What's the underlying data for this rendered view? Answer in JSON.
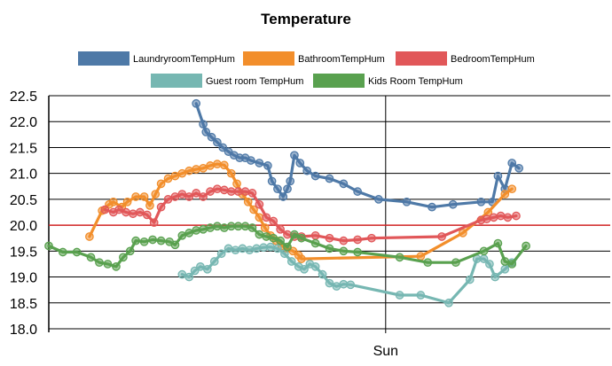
{
  "chart_data": {
    "type": "line",
    "title": "Temperature",
    "xlabel": "",
    "ylabel": "",
    "x_range_hours": [
      0,
      40
    ],
    "ylim": [
      18.0,
      22.5
    ],
    "yticks": [
      18.0,
      18.5,
      19.0,
      19.5,
      20.0,
      20.5,
      21.0,
      21.5,
      22.0,
      22.5
    ],
    "ytick_labels": [
      "18.0",
      "18.5",
      "19.0",
      "19.5",
      "20.0",
      "20.5",
      "21.0",
      "21.5",
      "22.0",
      "22.5"
    ],
    "xticks": [
      {
        "x": 24,
        "label": "Sun"
      }
    ],
    "reference_line": {
      "y": 20.0,
      "color": "#d62728"
    },
    "series": [
      {
        "name": "LaundryroomTempHum",
        "color": "#4e79a7",
        "points": [
          [
            10.5,
            22.35
          ],
          [
            11.0,
            21.95
          ],
          [
            11.2,
            21.8
          ],
          [
            11.6,
            21.7
          ],
          [
            12.0,
            21.6
          ],
          [
            12.4,
            21.5
          ],
          [
            12.8,
            21.42
          ],
          [
            13.2,
            21.35
          ],
          [
            13.6,
            21.3
          ],
          [
            14.0,
            21.3
          ],
          [
            14.4,
            21.25
          ],
          [
            15.0,
            21.2
          ],
          [
            15.6,
            21.15
          ],
          [
            15.9,
            20.85
          ],
          [
            16.3,
            20.7
          ],
          [
            16.7,
            20.55
          ],
          [
            17.0,
            20.7
          ],
          [
            17.2,
            20.85
          ],
          [
            17.5,
            21.35
          ],
          [
            17.9,
            21.2
          ],
          [
            18.4,
            21.05
          ],
          [
            19.0,
            20.95
          ],
          [
            20.0,
            20.9
          ],
          [
            21.0,
            20.8
          ],
          [
            22.0,
            20.65
          ],
          [
            23.5,
            20.5
          ],
          [
            25.5,
            20.45
          ],
          [
            27.3,
            20.35
          ],
          [
            28.8,
            20.4
          ],
          [
            30.8,
            20.45
          ],
          [
            31.6,
            20.45
          ],
          [
            32.0,
            20.95
          ],
          [
            32.5,
            20.7
          ],
          [
            33.0,
            21.2
          ],
          [
            33.5,
            21.1
          ]
        ]
      },
      {
        "name": "BathroomTempHum",
        "color": "#f28e2b",
        "points": [
          [
            2.9,
            19.78
          ],
          [
            3.8,
            20.28
          ],
          [
            4.3,
            20.4
          ],
          [
            4.6,
            20.45
          ],
          [
            5.2,
            20.35
          ],
          [
            5.6,
            20.45
          ],
          [
            6.2,
            20.55
          ],
          [
            6.8,
            20.55
          ],
          [
            7.2,
            20.38
          ],
          [
            7.6,
            20.6
          ],
          [
            8.0,
            20.8
          ],
          [
            8.5,
            20.9
          ],
          [
            9.0,
            20.95
          ],
          [
            9.5,
            21.0
          ],
          [
            10.0,
            21.05
          ],
          [
            10.5,
            21.08
          ],
          [
            11.0,
            21.1
          ],
          [
            11.5,
            21.15
          ],
          [
            12.0,
            21.18
          ],
          [
            12.5,
            21.16
          ],
          [
            13.0,
            21.0
          ],
          [
            13.4,
            20.8
          ],
          [
            13.8,
            20.6
          ],
          [
            14.2,
            20.45
          ],
          [
            14.6,
            20.3
          ],
          [
            15.0,
            20.15
          ],
          [
            15.4,
            19.95
          ],
          [
            15.8,
            19.8
          ],
          [
            16.2,
            19.7
          ],
          [
            16.6,
            19.6
          ],
          [
            17.0,
            19.55
          ],
          [
            17.4,
            19.5
          ],
          [
            17.8,
            19.42
          ],
          [
            18.0,
            19.35
          ],
          [
            26.5,
            19.4
          ],
          [
            29.5,
            19.85
          ],
          [
            31.3,
            20.25
          ],
          [
            32.5,
            20.6
          ],
          [
            33.0,
            20.7
          ]
        ]
      },
      {
        "name": "BedroomTempHum",
        "color": "#e15759",
        "points": [
          [
            4.0,
            20.3
          ],
          [
            4.6,
            20.25
          ],
          [
            5.0,
            20.3
          ],
          [
            5.5,
            20.25
          ],
          [
            6.0,
            20.22
          ],
          [
            6.5,
            20.25
          ],
          [
            7.0,
            20.2
          ],
          [
            7.5,
            20.05
          ],
          [
            8.0,
            20.35
          ],
          [
            8.5,
            20.5
          ],
          [
            9.0,
            20.55
          ],
          [
            9.5,
            20.6
          ],
          [
            10.0,
            20.55
          ],
          [
            10.5,
            20.62
          ],
          [
            11.0,
            20.55
          ],
          [
            11.5,
            20.65
          ],
          [
            12.0,
            20.7
          ],
          [
            12.5,
            20.68
          ],
          [
            13.0,
            20.65
          ],
          [
            13.5,
            20.65
          ],
          [
            14.0,
            20.65
          ],
          [
            14.5,
            20.62
          ],
          [
            15.0,
            20.4
          ],
          [
            15.5,
            20.15
          ],
          [
            16.0,
            20.08
          ],
          [
            16.5,
            19.92
          ],
          [
            17.0,
            19.82
          ],
          [
            17.5,
            19.78
          ],
          [
            18.0,
            19.78
          ],
          [
            19.0,
            19.8
          ],
          [
            20.0,
            19.75
          ],
          [
            21.0,
            19.7
          ],
          [
            22.0,
            19.72
          ],
          [
            23.0,
            19.75
          ],
          [
            28.0,
            19.78
          ],
          [
            30.8,
            20.1
          ],
          [
            31.2,
            20.12
          ],
          [
            31.7,
            20.15
          ],
          [
            32.2,
            20.18
          ],
          [
            32.7,
            20.15
          ],
          [
            33.3,
            20.18
          ]
        ]
      },
      {
        "name": "Guest room TempHum",
        "color": "#76b7b2",
        "points": [
          [
            9.5,
            19.05
          ],
          [
            10.0,
            19.0
          ],
          [
            10.4,
            19.12
          ],
          [
            10.8,
            19.2
          ],
          [
            11.3,
            19.15
          ],
          [
            11.8,
            19.3
          ],
          [
            12.3,
            19.45
          ],
          [
            12.8,
            19.55
          ],
          [
            13.3,
            19.52
          ],
          [
            13.8,
            19.55
          ],
          [
            14.3,
            19.52
          ],
          [
            14.8,
            19.55
          ],
          [
            15.3,
            19.57
          ],
          [
            15.8,
            19.58
          ],
          [
            16.3,
            19.55
          ],
          [
            16.8,
            19.45
          ],
          [
            17.3,
            19.3
          ],
          [
            17.8,
            19.2
          ],
          [
            18.2,
            19.15
          ],
          [
            18.6,
            19.25
          ],
          [
            19.0,
            19.2
          ],
          [
            19.5,
            19.05
          ],
          [
            20.0,
            18.88
          ],
          [
            20.5,
            18.82
          ],
          [
            21.0,
            18.86
          ],
          [
            21.5,
            18.85
          ],
          [
            25.0,
            18.65
          ],
          [
            26.5,
            18.65
          ],
          [
            28.5,
            18.5
          ],
          [
            30.0,
            18.95
          ],
          [
            30.5,
            19.35
          ],
          [
            31.0,
            19.35
          ],
          [
            31.4,
            19.25
          ],
          [
            31.8,
            19.0
          ],
          [
            32.5,
            19.15
          ],
          [
            33.0,
            19.28
          ]
        ]
      },
      {
        "name": "Kids Room TempHum",
        "color": "#59a14f",
        "points": [
          [
            0,
            19.6
          ],
          [
            1.0,
            19.48
          ],
          [
            2.0,
            19.48
          ],
          [
            3.0,
            19.38
          ],
          [
            3.6,
            19.28
          ],
          [
            4.2,
            19.25
          ],
          [
            4.8,
            19.2
          ],
          [
            5.3,
            19.38
          ],
          [
            5.8,
            19.5
          ],
          [
            6.2,
            19.7
          ],
          [
            6.8,
            19.68
          ],
          [
            7.4,
            19.72
          ],
          [
            8.0,
            19.7
          ],
          [
            8.6,
            19.68
          ],
          [
            9.0,
            19.62
          ],
          [
            9.5,
            19.8
          ],
          [
            10.0,
            19.85
          ],
          [
            10.5,
            19.9
          ],
          [
            11.0,
            19.92
          ],
          [
            11.5,
            19.95
          ],
          [
            12.0,
            19.98
          ],
          [
            12.5,
            19.95
          ],
          [
            13.0,
            19.98
          ],
          [
            13.5,
            19.98
          ],
          [
            14.0,
            19.98
          ],
          [
            14.5,
            19.95
          ],
          [
            15.0,
            19.82
          ],
          [
            15.5,
            19.78
          ],
          [
            16.0,
            19.75
          ],
          [
            16.5,
            19.7
          ],
          [
            17.0,
            19.58
          ],
          [
            17.5,
            19.82
          ],
          [
            18.0,
            19.75
          ],
          [
            19.0,
            19.65
          ],
          [
            20.0,
            19.55
          ],
          [
            21.0,
            19.5
          ],
          [
            22.0,
            19.48
          ],
          [
            25.0,
            19.38
          ],
          [
            27.0,
            19.28
          ],
          [
            29.0,
            19.28
          ],
          [
            31.0,
            19.5
          ],
          [
            32.0,
            19.65
          ],
          [
            32.5,
            19.3
          ],
          [
            33.0,
            19.25
          ],
          [
            34.0,
            19.6
          ]
        ]
      }
    ]
  }
}
